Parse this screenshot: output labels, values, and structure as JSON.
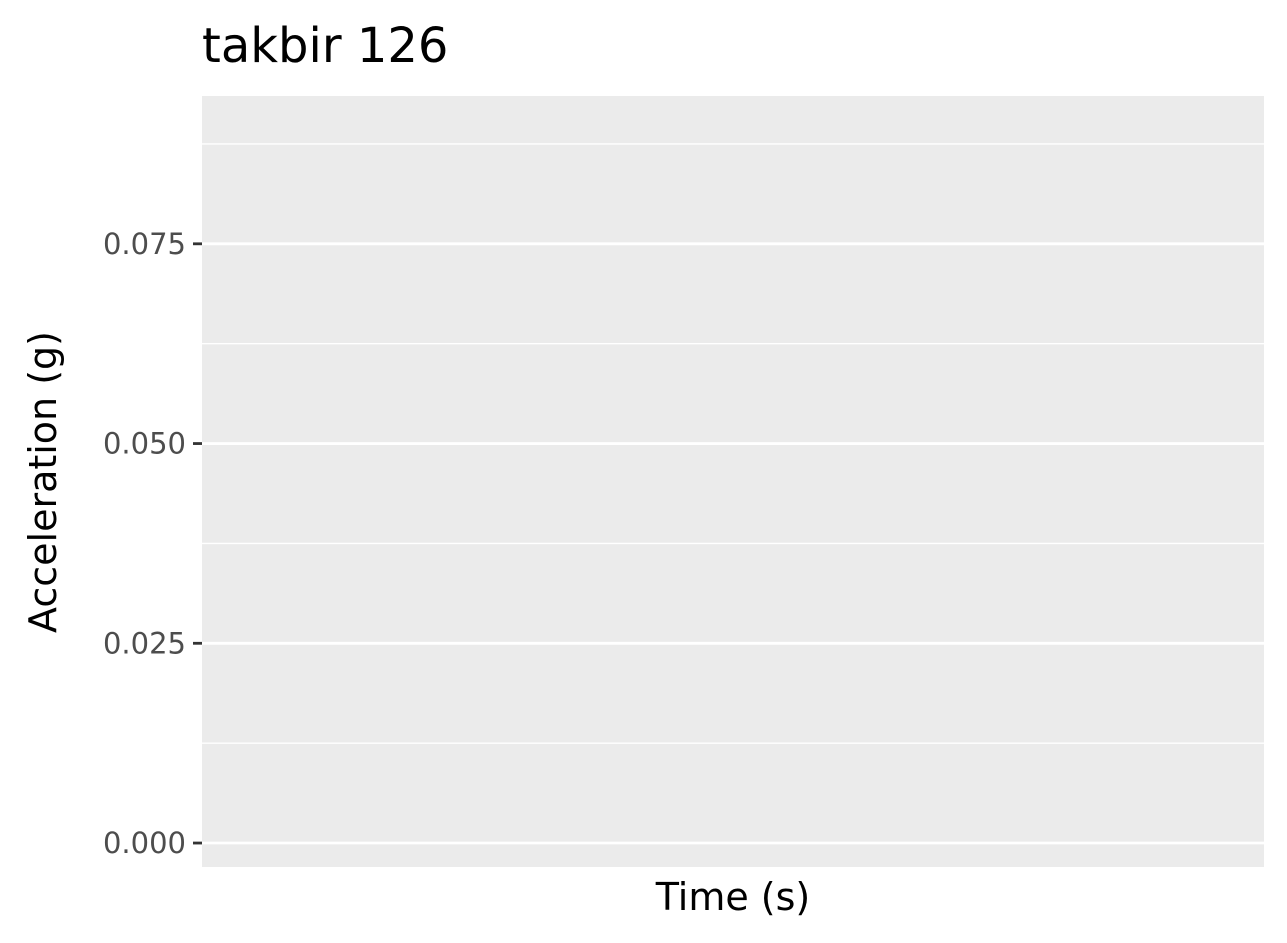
{
  "chart_data": {
    "type": "line",
    "title": "takbir 126",
    "xlabel": "Time (s)",
    "ylabel": "Acceleration (g)",
    "ylim": [
      -0.003,
      0.0935
    ],
    "yticks": [
      0.0,
      0.025,
      0.05,
      0.075
    ],
    "ytick_labels": [
      "0.000",
      "0.025",
      "0.050",
      "0.075"
    ],
    "xtick_labels": [],
    "series": [],
    "grid": true,
    "panel_background": "#ebebeb",
    "grid_color": "#ffffff",
    "tick_color": "#333333"
  }
}
